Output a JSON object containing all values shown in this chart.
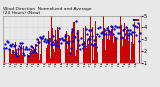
{
  "title": "Wind Direction  Normalized and Average",
  "subtitle": "(24 Hours) (New)",
  "bg_color": "#e8e8e8",
  "plot_bg_color": "#e8e8e8",
  "grid_color": "#bbbbbb",
  "bar_color": "#cc0000",
  "dot_color": "#0000cc",
  "ylim_low": 1,
  "ylim_high": 5,
  "yticks": [
    1,
    2,
    3,
    4,
    5
  ],
  "ylabel_fontsize": 3.5,
  "title_fontsize": 3.2,
  "n_points": 144,
  "seed": 42,
  "legend_blue_label": "=",
  "legend_red_label": "="
}
